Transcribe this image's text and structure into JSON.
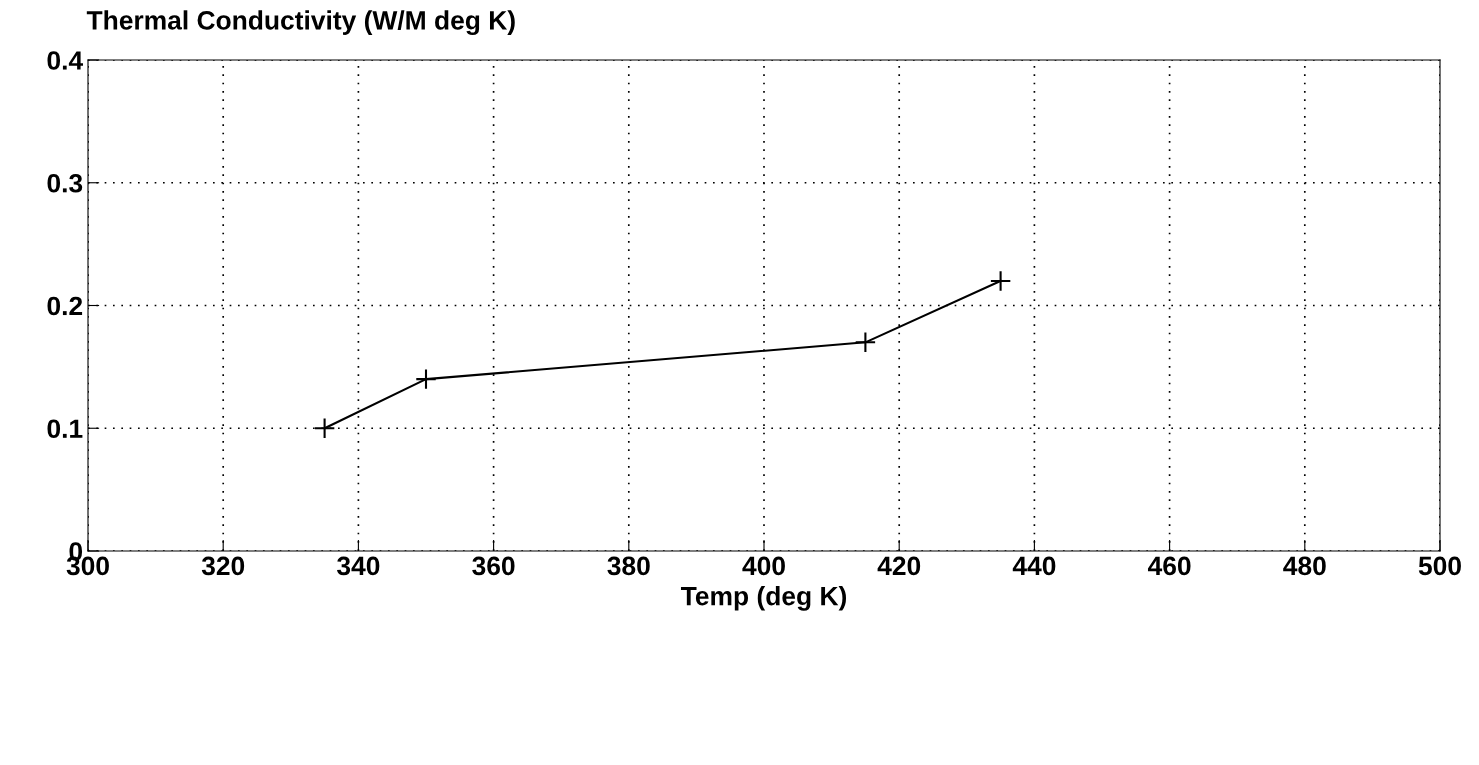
{
  "chart_data": {
    "type": "line",
    "title": "Thermal Conductivity (W/M deg K)",
    "xlabel": "Temp (deg K)",
    "x": [
      335,
      350,
      415,
      435
    ],
    "series": [
      {
        "color": "#000000",
        "values": [
          0.1,
          0.14,
          0.17,
          0.22
        ]
      }
    ],
    "xlim": [
      300,
      500
    ],
    "xticks": [
      300,
      320,
      340,
      360,
      380,
      400,
      420,
      440,
      460,
      480,
      500
    ],
    "ylim": [
      0,
      0.4
    ],
    "yticks": [
      {
        "value": 0,
        "label": "0"
      },
      0.1,
      0.2,
      0.3,
      0.4
    ],
    "grid": true,
    "marker": "cross",
    "line_style": "solid"
  }
}
